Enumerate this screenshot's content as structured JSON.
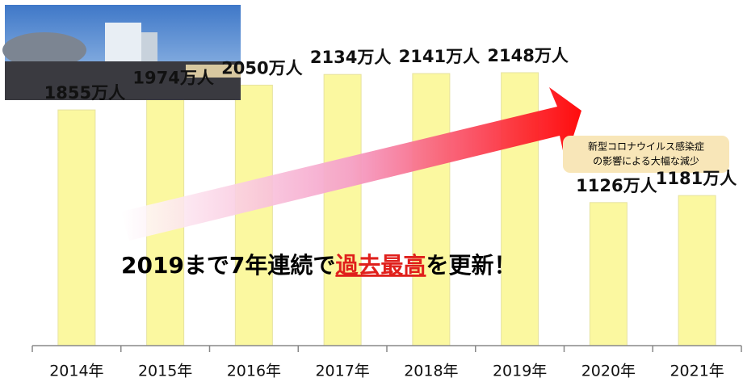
{
  "chart_data": {
    "type": "bar",
    "categories": [
      "2014年",
      "2015年",
      "2016年",
      "2017年",
      "2018年",
      "2019年",
      "2020年",
      "2021年"
    ],
    "values": [
      1855,
      1974,
      2050,
      2134,
      2141,
      2148,
      1126,
      1181
    ],
    "value_labels": [
      "1855万人",
      "1974万人",
      "2050万人",
      "2134万人",
      "2141万人",
      "2148万人",
      "1126万人",
      "1181万人"
    ],
    "color": "#fbf8a0",
    "annotations": {
      "headline": [
        "2019まで7年連続で",
        "過去最高",
        "を更新！"
      ],
      "callout": [
        "新型コロナウイルス感染症",
        "の影響による大幅な減少"
      ]
    }
  }
}
